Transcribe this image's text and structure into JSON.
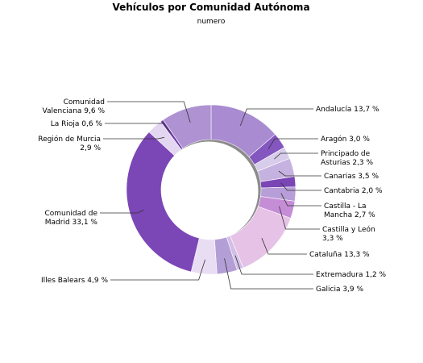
{
  "chart_data": {
    "type": "pie",
    "style": "donut",
    "title": "Vehículos por Comunidad Autónoma",
    "subtitle": "numero",
    "slices": [
      {
        "name": "Andalucía",
        "value": 13.7,
        "label": [
          "Andalucía 13,7 %"
        ],
        "color": "#A98BD1"
      },
      {
        "name": "Aragón",
        "value": 3.0,
        "label": [
          "Aragón 3,0 %"
        ],
        "color": "#8456C0"
      },
      {
        "name": "Principado de Asturias",
        "value": 2.3,
        "label": [
          "Principado de",
          "Asturias 2,3 %"
        ],
        "color": "#D8CCEB"
      },
      {
        "name": "Canarias",
        "value": 3.5,
        "label": [
          "Canarias 3,5 %"
        ],
        "color": "#C6B2E0"
      },
      {
        "name": "Cantabria",
        "value": 2.0,
        "label": [
          "Cantabria 2,0 %"
        ],
        "color": "#7A45B4"
      },
      {
        "name": "Castilla - La Mancha",
        "value": 2.7,
        "label": [
          "Castilla - La",
          "Mancha 2,7 %"
        ],
        "color": "#B89ED8"
      },
      {
        "name": "Castilla y León",
        "value": 3.3,
        "label": [
          "Castilla y León",
          "3,3 %"
        ],
        "color": "#C58DD6"
      },
      {
        "name": "Cataluña",
        "value": 13.3,
        "label": [
          "Cataluña 13,3 %"
        ],
        "color": "#E6C2E6"
      },
      {
        "name": "Extremadura",
        "value": 1.2,
        "label": [
          "Extremadura 1,2 %"
        ],
        "color": "#D2BFE6"
      },
      {
        "name": "Galicia",
        "value": 3.9,
        "label": [
          "Galicia 3,9 %"
        ],
        "color": "#B49ED6"
      },
      {
        "name": "Illes Balears",
        "value": 4.9,
        "label": [
          "Illes Balears 4,9 %"
        ],
        "color": "#E8DDF3"
      },
      {
        "name": "Comunidad de Madrid",
        "value": 33.1,
        "label": [
          "Comunidad de",
          "Madrid 33,1 %"
        ],
        "color": "#7B46B6"
      },
      {
        "name": "Región de Murcia",
        "value": 2.9,
        "label": [
          "Región de Murcia",
          "2,9 %"
        ],
        "color": "#E2D6F0"
      },
      {
        "name": "La Rioja",
        "value": 0.6,
        "label": [
          "La Rioja 0,6 %"
        ],
        "color": "#6E3AA8"
      },
      {
        "name": "Comunidad Valenciana",
        "value": 9.6,
        "label": [
          "Comunidad",
          "Valenciana 9,6 %"
        ],
        "color": "#AE92D2"
      }
    ]
  }
}
